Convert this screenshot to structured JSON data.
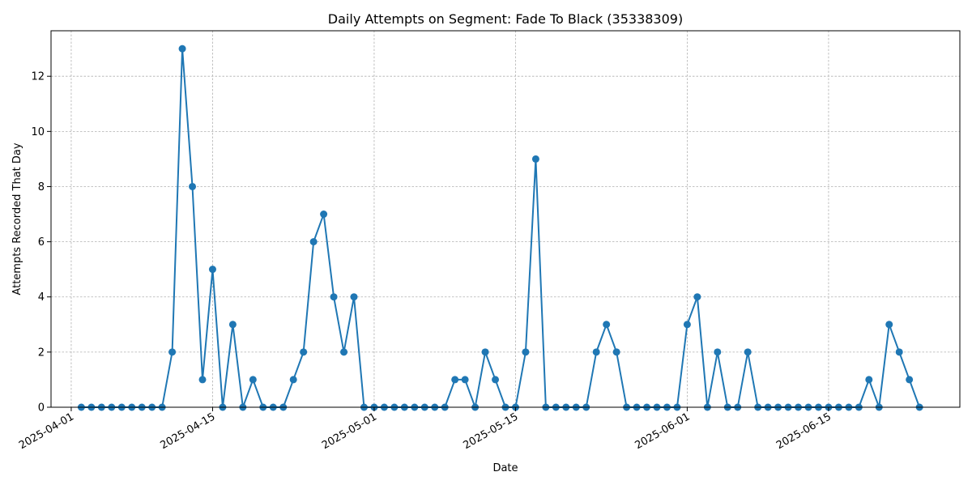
{
  "chart_data": {
    "type": "line",
    "title": "Daily Attempts on Segment: Fade To Black (35338309)",
    "xlabel": "Date",
    "ylabel": "Attempts Recorded That Day",
    "x_start_date": "2025-04-02",
    "x_end_date": "2025-06-24",
    "xlim": [
      "2025-03-30",
      "2025-06-28"
    ],
    "ylim": [
      0,
      13.65
    ],
    "x_ticks": [
      "2025-04-01",
      "2025-04-15",
      "2025-05-01",
      "2025-05-15",
      "2025-06-01",
      "2025-06-15"
    ],
    "y_ticks": [
      0,
      2,
      4,
      6,
      8,
      10,
      12
    ],
    "grid": true,
    "legend": "none",
    "color": "#1f77b4",
    "series": [
      {
        "x": [
          "2025-04-02",
          "2025-04-03",
          "2025-04-04",
          "2025-04-05",
          "2025-04-06",
          "2025-04-07",
          "2025-04-08",
          "2025-04-09",
          "2025-04-10",
          "2025-04-11",
          "2025-04-12",
          "2025-04-13",
          "2025-04-14",
          "2025-04-15",
          "2025-04-16",
          "2025-04-17",
          "2025-04-18",
          "2025-04-19",
          "2025-04-20",
          "2025-04-21",
          "2025-04-22",
          "2025-04-23",
          "2025-04-24",
          "2025-04-25",
          "2025-04-26",
          "2025-04-27",
          "2025-04-28",
          "2025-04-29",
          "2025-04-30",
          "2025-05-01",
          "2025-05-02",
          "2025-05-03",
          "2025-05-04",
          "2025-05-05",
          "2025-05-06",
          "2025-05-07",
          "2025-05-08",
          "2025-05-09",
          "2025-05-10",
          "2025-05-11",
          "2025-05-12",
          "2025-05-13",
          "2025-05-14",
          "2025-05-15",
          "2025-05-16",
          "2025-05-17",
          "2025-05-18",
          "2025-05-19",
          "2025-05-20",
          "2025-05-21",
          "2025-05-22",
          "2025-05-23",
          "2025-05-24",
          "2025-05-25",
          "2025-05-26",
          "2025-05-27",
          "2025-05-28",
          "2025-05-29",
          "2025-05-30",
          "2025-05-31",
          "2025-06-01",
          "2025-06-02",
          "2025-06-03",
          "2025-06-04",
          "2025-06-05",
          "2025-06-06",
          "2025-06-07",
          "2025-06-08",
          "2025-06-09",
          "2025-06-10",
          "2025-06-11",
          "2025-06-12",
          "2025-06-13",
          "2025-06-14",
          "2025-06-15",
          "2025-06-16",
          "2025-06-17",
          "2025-06-18",
          "2025-06-19",
          "2025-06-20",
          "2025-06-21",
          "2025-06-22",
          "2025-06-23",
          "2025-06-24"
        ],
        "values": [
          0,
          0,
          0,
          0,
          0,
          0,
          0,
          0,
          0,
          2,
          13,
          8,
          1,
          5,
          0,
          3,
          0,
          1,
          0,
          0,
          0,
          1,
          2,
          6,
          7,
          4,
          2,
          4,
          0,
          0,
          0,
          0,
          0,
          0,
          0,
          0,
          0,
          1,
          1,
          0,
          2,
          1,
          0,
          0,
          2,
          9,
          0,
          0,
          0,
          0,
          0,
          2,
          3,
          2,
          0,
          0,
          0,
          0,
          0,
          0,
          3,
          4,
          0,
          2,
          0,
          0,
          2,
          0,
          0,
          0,
          0,
          0,
          0,
          0,
          0,
          0,
          0,
          0,
          1,
          0,
          3,
          2,
          1,
          0
        ]
      }
    ]
  }
}
